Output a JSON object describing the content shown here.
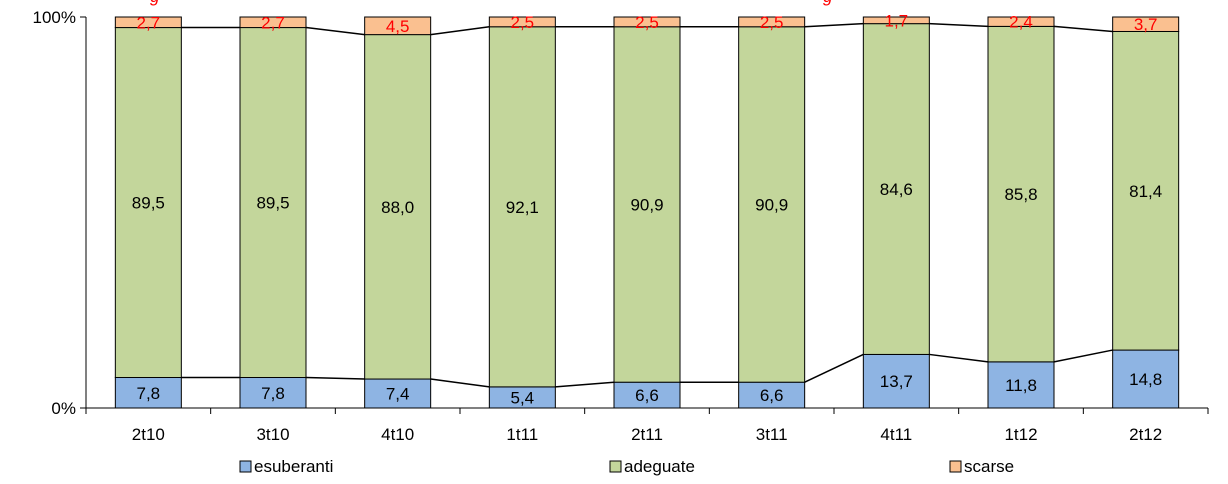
{
  "chart_data": {
    "type": "bar",
    "stacked": true,
    "percent_scale": true,
    "title_fragment": "g",
    "title_fragment_right": "g",
    "categories": [
      "2t10",
      "3t10",
      "4t10",
      "1t11",
      "2t11",
      "3t11",
      "4t11",
      "1t12",
      "2t12"
    ],
    "series": [
      {
        "name": "esuberanti",
        "values": [
          7.8,
          7.8,
          7.4,
          5.4,
          6.6,
          6.6,
          13.7,
          11.8,
          14.8
        ],
        "labels": [
          "7,8",
          "7,8",
          "7,4",
          "5,4",
          "6,6",
          "6,6",
          "13,7",
          "11,8",
          "14,8"
        ],
        "color": "#8eb4e3",
        "label_color": "#000000"
      },
      {
        "name": "adeguate",
        "values": [
          89.5,
          89.5,
          88.0,
          92.1,
          90.9,
          90.9,
          84.6,
          85.8,
          81.4
        ],
        "labels": [
          "89,5",
          "89,5",
          "88,0",
          "92,1",
          "90,9",
          "90,9",
          "84,6",
          "85,8",
          "81,4"
        ],
        "color": "#c3d69b",
        "label_color": "#000000"
      },
      {
        "name": "scarse",
        "values": [
          2.7,
          2.7,
          4.5,
          2.5,
          2.5,
          2.5,
          1.7,
          2.4,
          3.7
        ],
        "labels": [
          "2,7",
          "2,7",
          "4,5",
          "2,5",
          "2,5",
          "2,5",
          "1,7",
          "2,4",
          "3,7"
        ],
        "color": "#fac090",
        "label_color": "#ff0000"
      }
    ],
    "y_ticks": [
      "0%",
      "100%"
    ],
    "ylim": [
      0,
      100
    ],
    "legend_position": "bottom",
    "grid": false,
    "connector_lines": true
  }
}
